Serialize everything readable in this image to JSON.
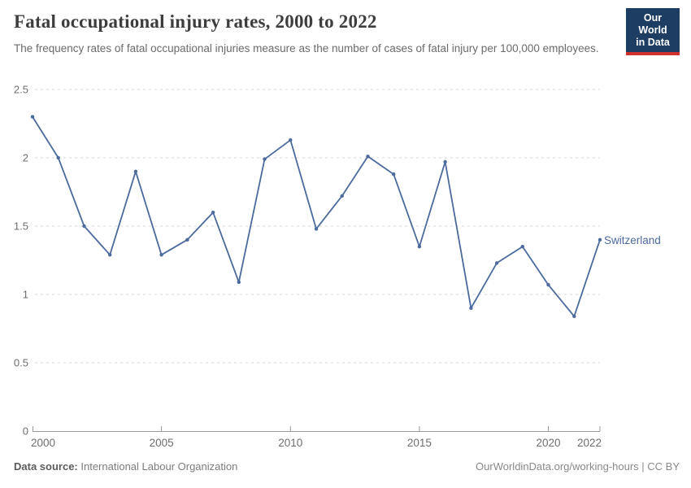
{
  "header": {
    "title": "Fatal occupational injury rates, 2000 to 2022",
    "subtitle": "The frequency rates of fatal occupational injuries measure as the number of cases of fatal injury per 100,000 employees.",
    "logo": {
      "line1": "Our World",
      "line2": "in Data"
    }
  },
  "chart_data": {
    "type": "line",
    "title": "Fatal occupational injury rates, 2000 to 2022",
    "x": [
      2000,
      2001,
      2002,
      2003,
      2004,
      2005,
      2006,
      2007,
      2008,
      2009,
      2010,
      2011,
      2012,
      2013,
      2014,
      2015,
      2016,
      2017,
      2018,
      2019,
      2020,
      2021,
      2022
    ],
    "series": [
      {
        "name": "Switzerland",
        "values": [
          2.3,
          2.0,
          1.5,
          1.29,
          1.9,
          1.29,
          1.4,
          1.6,
          1.09,
          1.99,
          2.13,
          1.48,
          1.72,
          2.01,
          1.88,
          1.35,
          1.97,
          0.9,
          1.23,
          1.35,
          1.07,
          0.84,
          1.4
        ]
      }
    ],
    "xlim": [
      2000,
      2022
    ],
    "ylim": [
      0,
      2.5
    ],
    "x_ticks": [
      2000,
      2005,
      2010,
      2015,
      2020,
      2022
    ],
    "y_ticks": [
      0,
      0.5,
      1,
      1.5,
      2,
      2.5
    ],
    "grid": "horizontal-dashed",
    "legend_position": "end-of-line-label",
    "end_label": "Switzerland"
  },
  "footer": {
    "source_label": "Data source:",
    "source_value": "International Labour Organization",
    "credit": "OurWorldinData.org/working-hours | CC BY"
  },
  "colors": {
    "line": "#4c6a9c",
    "grid": "#d9d9d9",
    "axis": "#9a9a9a",
    "tick_text": "#6e6e6e",
    "title_text": "#3d3d3d",
    "logo_bg": "#1d3d63",
    "logo_stripe": "#d0312d"
  }
}
